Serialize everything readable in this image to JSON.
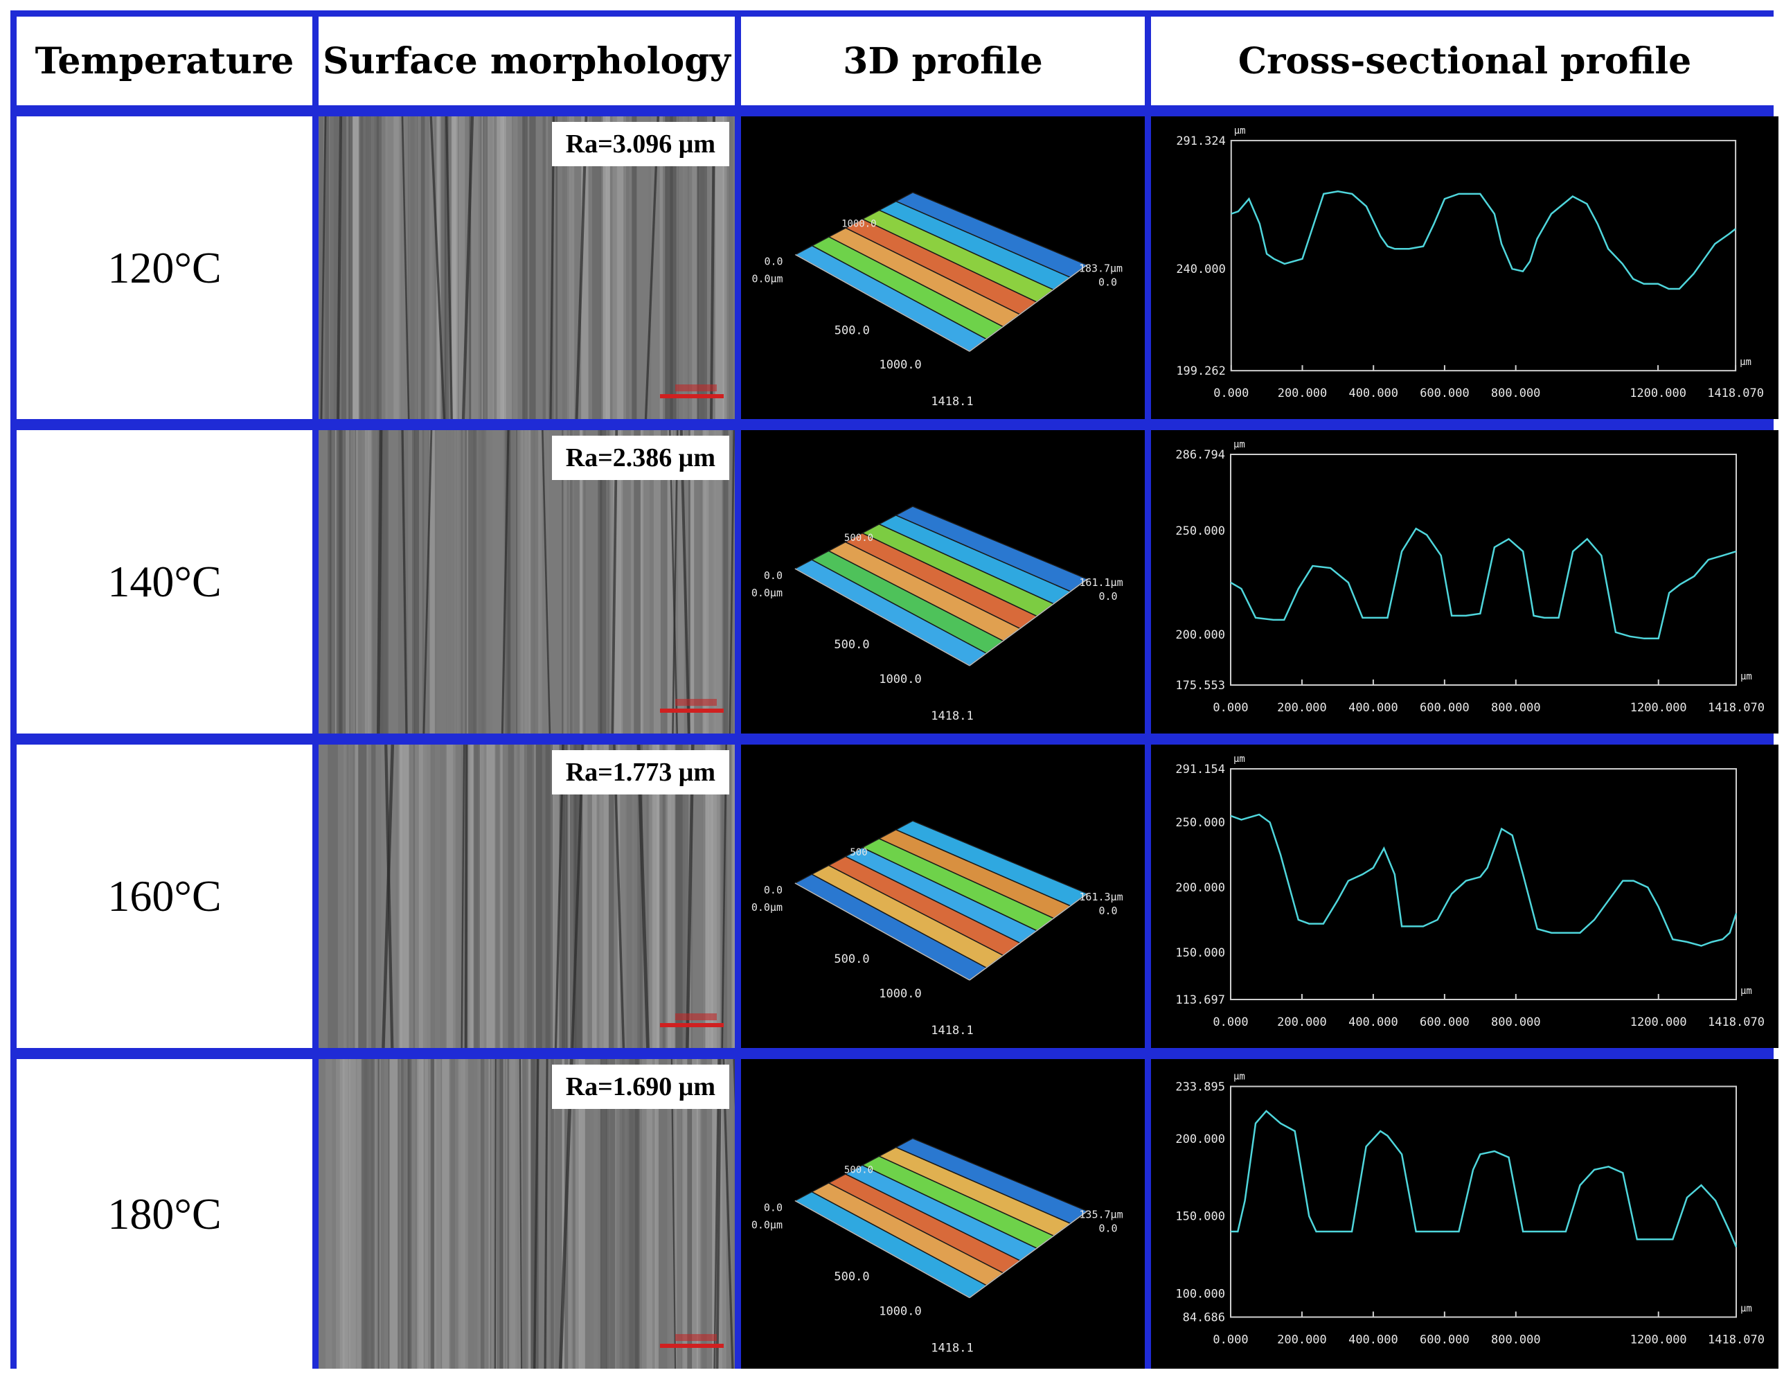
{
  "headers": {
    "temperature": "Temperature",
    "surface": "Surface morphology",
    "profile3d": "3D profile",
    "cross": "Cross-sectional profile"
  },
  "rows": [
    {
      "temperature": "120°C",
      "ra": "Ra=3.096 μm",
      "p3d": {
        "x_mid": "500.0",
        "x_far": "1000.0",
        "x_end": "1418.1",
        "y0": "0.0",
        "y0_um": "0.0μm",
        "y_top": "1000.0",
        "z_max": "183.7μm",
        "z0": "0.0",
        "band_colors": [
          "#3aa8e6",
          "#6ed24a",
          "#e0a050",
          "#d86a3a",
          "#8cd040",
          "#2fa8e0",
          "#2a78d0"
        ]
      },
      "cross": {
        "ytop": "291.324",
        "ymid": "240.000",
        "ybot": "199.262",
        "yunit": "μm",
        "xunit": "μm",
        "xticks": [
          "0.000",
          "200.000",
          "400.000",
          "600.000",
          "800.000",
          "1200.000",
          "1418.070"
        ],
        "ymin": 199.262,
        "ymax": 291.324,
        "x": [
          0,
          20,
          50,
          80,
          100,
          120,
          150,
          200,
          260,
          300,
          340,
          380,
          420,
          440,
          460,
          500,
          540,
          570,
          600,
          640,
          700,
          740,
          760,
          790,
          820,
          840,
          860,
          900,
          960,
          1000,
          1030,
          1060,
          1100,
          1130,
          1160,
          1200,
          1230,
          1260,
          1300,
          1330,
          1360,
          1380,
          1400,
          1418
        ],
        "y": [
          262,
          263,
          268,
          258,
          246,
          244,
          242,
          244,
          270,
          271,
          270,
          265,
          253,
          249,
          248,
          248,
          249,
          258,
          268,
          270,
          270,
          262,
          250,
          240,
          239,
          243,
          252,
          262,
          269,
          266,
          258,
          248,
          242,
          236,
          234,
          234,
          232,
          232,
          238,
          244,
          250,
          252,
          254,
          256
        ]
      }
    },
    {
      "temperature": "140°C",
      "ra": "Ra=2.386 μm",
      "p3d": {
        "x_mid": "500.0",
        "x_far": "1000.0",
        "x_end": "1418.1",
        "y0": "0.0",
        "y0_um": "0.0μm",
        "y_top": "500.0",
        "z_max": "161.1μm",
        "z0": "0.0",
        "band_colors": [
          "#3aa8e6",
          "#4ec25a",
          "#e0a050",
          "#d86a3a",
          "#7ccc42",
          "#2fa8e0",
          "#2a78d0"
        ]
      },
      "cross": {
        "ytop": "286.794",
        "ymid": "250.000",
        "ybot": "200.000",
        "ybottom": "175.553",
        "yunit": "μm",
        "xunit": "μm",
        "xticks": [
          "0.000",
          "200.000",
          "400.000",
          "600.000",
          "800.000",
          "1200.000",
          "1418.070"
        ],
        "ymin": 175.553,
        "ymax": 286.794,
        "x": [
          0,
          30,
          70,
          120,
          150,
          190,
          230,
          280,
          330,
          370,
          410,
          440,
          480,
          520,
          550,
          590,
          620,
          660,
          700,
          740,
          780,
          820,
          850,
          880,
          920,
          960,
          1000,
          1040,
          1080,
          1120,
          1160,
          1200,
          1230,
          1260,
          1300,
          1340,
          1380,
          1418
        ],
        "y": [
          225,
          222,
          208,
          207,
          207,
          222,
          233,
          232,
          225,
          208,
          208,
          208,
          240,
          251,
          248,
          238,
          209,
          209,
          210,
          242,
          246,
          240,
          209,
          208,
          208,
          240,
          246,
          238,
          201,
          199,
          198,
          198,
          220,
          224,
          228,
          236,
          238,
          240
        ]
      }
    },
    {
      "temperature": "160°C",
      "ra": "Ra=1.773 μm",
      "p3d": {
        "x_mid": "500.0",
        "x_far": "1000.0",
        "x_end": "1418.1",
        "y0": "0.0",
        "y0_um": "0.0μm",
        "y_top": "500",
        "z_max": "161.3μm",
        "z0": "0.0",
        "band_colors": [
          "#2a78d0",
          "#e0b050",
          "#d86a3a",
          "#3aa8e6",
          "#6ed24a",
          "#d89040",
          "#2fa8e0"
        ]
      },
      "cross": {
        "ytop": "291.154",
        "ymid": "250.000",
        "ybot": "200.000",
        "ybot2": "150.000",
        "ybottom": "113.697",
        "yunit": "μm",
        "xunit": "μm",
        "xticks": [
          "0.000",
          "200.000",
          "400.000",
          "600.000",
          "800.000",
          "1200.000",
          "1418.070"
        ],
        "ymin": 113.697,
        "ymax": 291.154,
        "x": [
          0,
          30,
          80,
          110,
          140,
          190,
          220,
          260,
          300,
          330,
          370,
          400,
          430,
          460,
          480,
          500,
          540,
          580,
          620,
          660,
          700,
          720,
          760,
          790,
          820,
          860,
          900,
          940,
          980,
          1020,
          1060,
          1100,
          1130,
          1170,
          1200,
          1240,
          1280,
          1320,
          1350,
          1380,
          1400,
          1418
        ],
        "y": [
          255,
          252,
          256,
          250,
          225,
          175,
          172,
          172,
          190,
          205,
          210,
          215,
          230,
          210,
          170,
          170,
          170,
          175,
          195,
          205,
          208,
          215,
          245,
          240,
          210,
          168,
          165,
          165,
          165,
          175,
          190,
          205,
          205,
          200,
          185,
          160,
          158,
          155,
          158,
          160,
          165,
          180
        ]
      }
    },
    {
      "temperature": "180°C",
      "ra": "Ra=1.690 μm",
      "p3d": {
        "x_mid": "500.0",
        "x_far": "1000.0",
        "x_end": "1418.1",
        "y0": "0.0",
        "y0_um": "0.0μm",
        "y_top": "500.0",
        "z_max": "135.7μm",
        "z0": "0.0",
        "band_colors": [
          "#2fa8e0",
          "#e0a050",
          "#d86a3a",
          "#3aa8e6",
          "#6ed24a",
          "#e0b050",
          "#2a78d0"
        ]
      },
      "cross": {
        "ytop": "233.895",
        "ymid": "200.000",
        "ybot": "150.000",
        "ybot2": "100.000",
        "ybottom": "84.686",
        "yunit": "μm",
        "xunit": "μm",
        "xticks": [
          "0.000",
          "200.000",
          "400.000",
          "600.000",
          "800.000",
          "1200.000",
          "1418.070"
        ],
        "ymin": 84.686,
        "ymax": 233.895,
        "x": [
          0,
          20,
          40,
          70,
          100,
          140,
          180,
          220,
          240,
          260,
          300,
          340,
          380,
          420,
          440,
          480,
          520,
          560,
          600,
          640,
          680,
          700,
          740,
          780,
          820,
          860,
          900,
          940,
          980,
          1020,
          1060,
          1100,
          1140,
          1180,
          1200,
          1240,
          1280,
          1320,
          1360,
          1400,
          1418
        ],
        "y": [
          140,
          140,
          160,
          210,
          218,
          210,
          205,
          150,
          140,
          140,
          140,
          140,
          195,
          205,
          202,
          190,
          140,
          140,
          140,
          140,
          180,
          190,
          192,
          188,
          140,
          140,
          140,
          140,
          170,
          180,
          182,
          178,
          135,
          135,
          135,
          135,
          162,
          170,
          160,
          140,
          130
        ]
      }
    }
  ]
}
